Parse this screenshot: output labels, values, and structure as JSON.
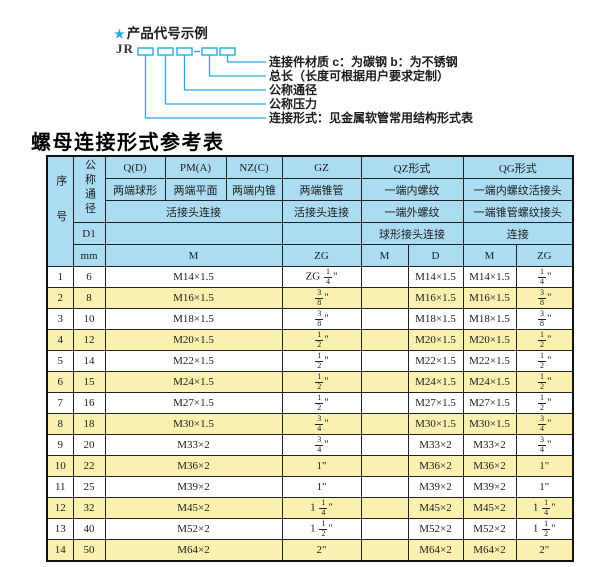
{
  "colors": {
    "accent_cyan": "#29A9E0",
    "header_blue": "#ACDCF2",
    "row_yellow": "#F8F1B0"
  },
  "diagram": {
    "star": "★",
    "heading": "产品代号示例",
    "code_prefix": "JR",
    "labels": [
      "连接件材质  c：为碳钢  b：为不锈钢",
      "总长（长度可根据用户要求定制）",
      "公称通径",
      "公称压力",
      "连接形式：见金属软管常用结构形式表"
    ]
  },
  "table": {
    "title": "螺母连接形式参考表",
    "header": {
      "serial": "序号",
      "diameter": "公称通径",
      "d1": "D1",
      "mm": "mm",
      "form_codes": [
        "Q(D)",
        "PM(A)",
        "NZ(C)",
        "GZ",
        "QZ形式",
        "QG形式"
      ],
      "end_types": [
        "两端球形",
        "两端平面",
        "两端内锥",
        "两端锥管",
        "一端内螺纹",
        "一端内螺纹活接头"
      ],
      "conn_row": [
        "活接头连接",
        "活接头连接",
        "一端外螺纹",
        "一端锥管螺纹接头"
      ],
      "conn_row2": [
        "球形接头连接",
        "连接"
      ],
      "thread_cols": [
        "M",
        "ZG",
        "M",
        "D",
        "M",
        "ZG"
      ]
    },
    "rows": [
      {
        "no": "1",
        "dn": "6",
        "m": "M14×1.5",
        "gz": "ZG 1/4\"",
        "qz_m": "",
        "qz_d": "M14×1.5",
        "qg_m": "M14×1.5",
        "qg_zg": "1/4\""
      },
      {
        "no": "2",
        "dn": "8",
        "m": "M16×1.5",
        "gz": "3/8\"",
        "qz_m": "",
        "qz_d": "M16×1.5",
        "qg_m": "M16×1.5",
        "qg_zg": "3/8\""
      },
      {
        "no": "3",
        "dn": "10",
        "m": "M18×1.5",
        "gz": "3/8\"",
        "qz_m": "",
        "qz_d": "M18×1.5",
        "qg_m": "M18×1.5",
        "qg_zg": "3/8\""
      },
      {
        "no": "4",
        "dn": "12",
        "m": "M20×1.5",
        "gz": "1/2\"",
        "qz_m": "",
        "qz_d": "M20×1.5",
        "qg_m": "M20×1.5",
        "qg_zg": "1/2\""
      },
      {
        "no": "5",
        "dn": "14",
        "m": "M22×1.5",
        "gz": "1/2\"",
        "qz_m": "",
        "qz_d": "M22×1.5",
        "qg_m": "M22×1.5",
        "qg_zg": "1/2\""
      },
      {
        "no": "6",
        "dn": "15",
        "m": "M24×1.5",
        "gz": "1/2\"",
        "qz_m": "",
        "qz_d": "M24×1.5",
        "qg_m": "M24×1.5",
        "qg_zg": "1/2\""
      },
      {
        "no": "7",
        "dn": "16",
        "m": "M27×1.5",
        "gz": "1/2\"",
        "qz_m": "",
        "qz_d": "M27×1.5",
        "qg_m": "M27×1.5",
        "qg_zg": "1/2\""
      },
      {
        "no": "8",
        "dn": "18",
        "m": "M30×1.5",
        "gz": "3/4\"",
        "qz_m": "",
        "qz_d": "M30×1.5",
        "qg_m": "M30×1.5",
        "qg_zg": "3/4\""
      },
      {
        "no": "9",
        "dn": "20",
        "m": "M33×2",
        "gz": "3/4\"",
        "qz_m": "",
        "qz_d": "M33×2",
        "qg_m": "M33×2",
        "qg_zg": "3/4\""
      },
      {
        "no": "10",
        "dn": "22",
        "m": "M36×2",
        "gz": "1\"",
        "qz_m": "",
        "qz_d": "M36×2",
        "qg_m": "M36×2",
        "qg_zg": "1\""
      },
      {
        "no": "11",
        "dn": "25",
        "m": "M39×2",
        "gz": "1\"",
        "qz_m": "",
        "qz_d": "M39×2",
        "qg_m": "M39×2",
        "qg_zg": "1\""
      },
      {
        "no": "12",
        "dn": "32",
        "m": "M45×2",
        "gz": "1 1/4\"",
        "qz_m": "",
        "qz_d": "M45×2",
        "qg_m": "M45×2",
        "qg_zg": "1 1/4\""
      },
      {
        "no": "13",
        "dn": "40",
        "m": "M52×2",
        "gz": "1 1/2\"",
        "qz_m": "",
        "qz_d": "M52×2",
        "qg_m": "M52×2",
        "qg_zg": "1 1/2\""
      },
      {
        "no": "14",
        "dn": "50",
        "m": "M64×2",
        "gz": "2\"",
        "qz_m": "",
        "qz_d": "M64×2",
        "qg_m": "M64×2",
        "qg_zg": "2\""
      }
    ]
  }
}
